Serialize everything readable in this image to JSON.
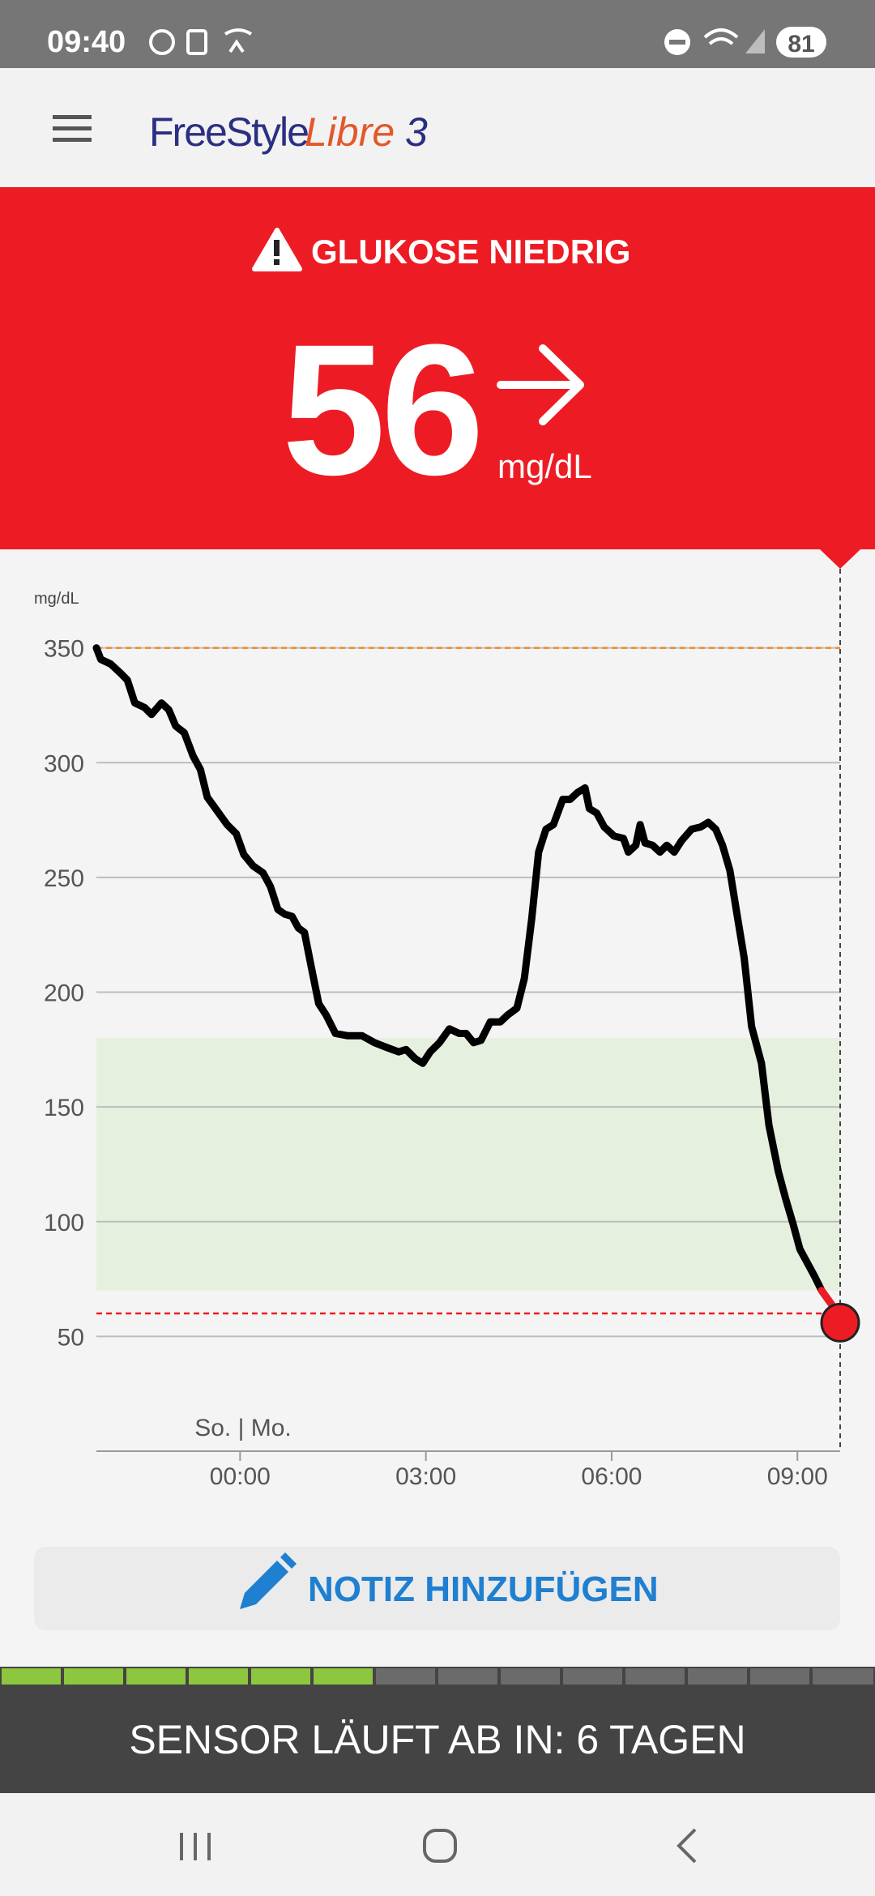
{
  "status_bar": {
    "time": "09:40",
    "battery": "81"
  },
  "header": {
    "brand": "FreeStyle",
    "product": "Libre",
    "version": "3"
  },
  "alert": {
    "title": "GLUKOSE NIEDRIG",
    "value": 56,
    "unit": "mg/dL"
  },
  "chart_data": {
    "type": "line",
    "y_label": "mg/dL",
    "annotation": "So. | Mo.",
    "x": [
      -2.32,
      -2.25,
      -2.09,
      -1.93,
      -1.82,
      -1.7,
      -1.54,
      -1.43,
      -1.27,
      -1.15,
      -1.04,
      -0.9,
      -0.76,
      -0.64,
      -0.53,
      -0.37,
      -0.21,
      -0.06,
      0.06,
      0.21,
      0.37,
      0.49,
      0.61,
      0.72,
      0.84,
      0.94,
      1.04,
      1.15,
      1.27,
      1.39,
      1.54,
      1.74,
      1.97,
      2.17,
      2.36,
      2.56,
      2.68,
      2.83,
      2.95,
      3.07,
      3.22,
      3.38,
      3.54,
      3.65,
      3.77,
      3.89,
      4.04,
      4.2,
      4.32,
      4.47,
      4.59,
      4.71,
      4.82,
      4.94,
      5.06,
      5.21,
      5.33,
      5.45,
      5.57,
      5.64,
      5.76,
      5.88,
      6.04,
      6.19,
      6.27,
      6.39,
      6.46,
      6.54,
      6.66,
      6.78,
      6.89,
      7.01,
      7.13,
      7.29,
      7.44,
      7.56,
      7.68,
      7.79,
      7.91,
      8.03,
      8.14,
      8.26,
      8.42,
      8.54,
      8.69,
      8.81,
      8.93,
      9.04,
      9.16,
      9.28,
      9.39,
      9.55,
      9.69
    ],
    "series": [
      {
        "color": "#000000",
        "values": [
          350,
          345,
          343,
          339,
          336,
          326,
          324,
          321,
          326,
          323,
          316,
          313,
          303,
          297,
          285,
          279,
          273,
          269,
          260,
          255,
          252,
          246,
          236,
          234,
          233,
          228,
          226,
          211,
          195,
          190,
          182,
          181,
          181,
          178,
          176,
          174,
          175,
          171,
          169,
          174,
          178,
          184,
          182,
          182,
          178,
          179,
          187,
          187,
          190,
          193,
          206,
          232,
          261,
          271,
          273,
          284,
          284,
          287,
          289,
          280,
          278,
          272,
          268,
          267,
          261,
          264,
          273,
          265,
          264,
          261,
          264,
          261,
          266,
          271,
          272,
          274,
          271,
          264,
          253,
          233,
          215,
          185,
          169,
          142,
          122,
          110,
          99,
          88,
          82,
          76,
          70,
          64,
          56
        ]
      }
    ],
    "xlim": [
      -2.32,
      9.69
    ],
    "xticks": [
      {
        "value": 0,
        "label": "00:00"
      },
      {
        "value": 3,
        "label": "03:00"
      },
      {
        "value": 6,
        "label": "06:00"
      },
      {
        "value": 9,
        "label": "09:00"
      }
    ],
    "ylim": [
      0,
      370
    ],
    "yticks": [
      50,
      100,
      150,
      200,
      250,
      300,
      350
    ],
    "grid": true,
    "target_range": [
      70,
      180
    ],
    "target_color": "#e6f0df",
    "high_line": 350,
    "high_color": "#f08a24",
    "low_line": 60,
    "low_color": "#ed1c24"
  },
  "note_button": "NOTIZ HINZUFÜGEN",
  "sensor_banner": "SENSOR LÄUFT AB IN: 6 TAGEN"
}
